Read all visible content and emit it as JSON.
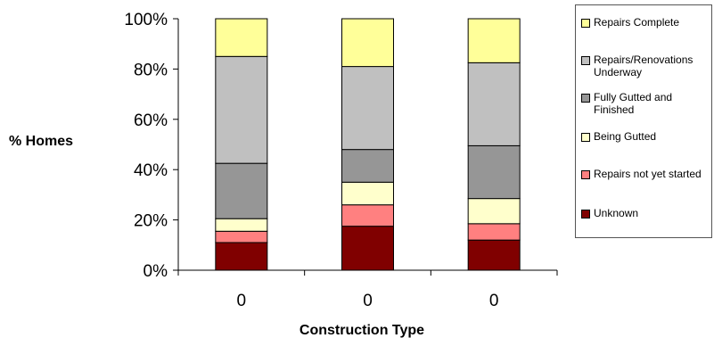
{
  "chart_data": {
    "type": "bar",
    "stacked": true,
    "percent": true,
    "categories": [
      "0",
      "0",
      "0"
    ],
    "xlabel": "Construction Type",
    "ylabel": "% Homes",
    "ylim": [
      0,
      100
    ],
    "yticks": [
      "0%",
      "20%",
      "40%",
      "60%",
      "80%",
      "100%"
    ],
    "grid": false,
    "legend_position": "right",
    "series": [
      {
        "name": "Unknown",
        "color": "#800000",
        "values": [
          11,
          17.5,
          12
        ]
      },
      {
        "name": "Repairs not yet started",
        "color": "#ff8080",
        "values": [
          4.5,
          8.5,
          6.5
        ]
      },
      {
        "name": "Being Gutted",
        "color": "#ffffcc",
        "values": [
          5,
          9,
          10
        ]
      },
      {
        "name": "Fully Gutted and Finished",
        "color": "#969696",
        "values": [
          22,
          13,
          21
        ]
      },
      {
        "name": "Repairs/Renovations Underway",
        "color": "#c0c0c0",
        "values": [
          42.5,
          33,
          33
        ]
      },
      {
        "name": "Repairs Complete",
        "color": "#ffff99",
        "values": [
          15,
          19,
          17.5
        ]
      }
    ]
  }
}
